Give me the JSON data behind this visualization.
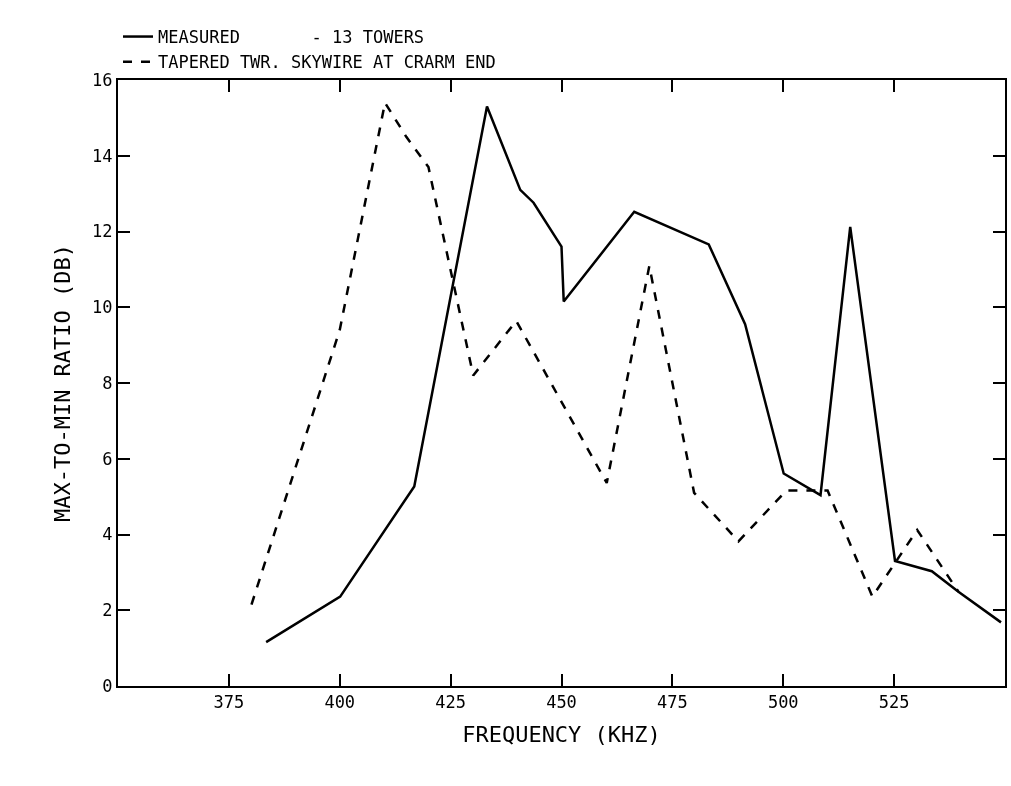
{
  "chart_data": {
    "type": "line",
    "xlabel": "FREQUENCY (KHZ)",
    "ylabel": "MAX-TO-MIN RATIO (DB)",
    "xlim": [
      350,
      550
    ],
    "xticks": [
      375,
      400,
      425,
      450,
      475,
      500,
      525
    ],
    "ylim": [
      0,
      16
    ],
    "yticks": [
      0,
      2,
      4,
      6,
      8,
      10,
      12,
      14,
      16
    ],
    "legend": "top",
    "series": [
      {
        "name": "MEASURED       - 13 TOWERS",
        "color": "#000000",
        "line_style": "solid",
        "x": [
          383.4,
          400.1,
          416.8,
          433.2,
          440.7,
          443.7,
          450.0,
          450.5,
          466.4,
          483.2,
          491.4,
          500.1,
          508.4,
          515.1,
          525.2,
          533.5,
          539.5,
          549.1
        ],
        "values": [
          1.16,
          2.36,
          5.27,
          15.3,
          13.1,
          12.76,
          11.6,
          10.15,
          12.52,
          11.66,
          9.55,
          5.61,
          5.04,
          12.12,
          3.3,
          3.03,
          2.49,
          1.68
        ]
      },
      {
        "name": "TAPERED TWR. SKYWIRE AT CRARM END",
        "color": "#000000",
        "line_style": "dashed",
        "x": [
          380.1,
          400.0,
          410.2,
          415.0,
          420.0,
          430.1,
          439.8,
          460.2,
          469.8,
          479.9,
          489.9,
          500.7,
          510.0,
          520.1,
          530.2,
          539.5
        ],
        "values": [
          2.15,
          9.4,
          15.4,
          14.5,
          13.7,
          8.2,
          9.64,
          5.36,
          11.09,
          5.1,
          3.82,
          5.16,
          5.16,
          2.36,
          4.12,
          2.49
        ]
      }
    ]
  }
}
